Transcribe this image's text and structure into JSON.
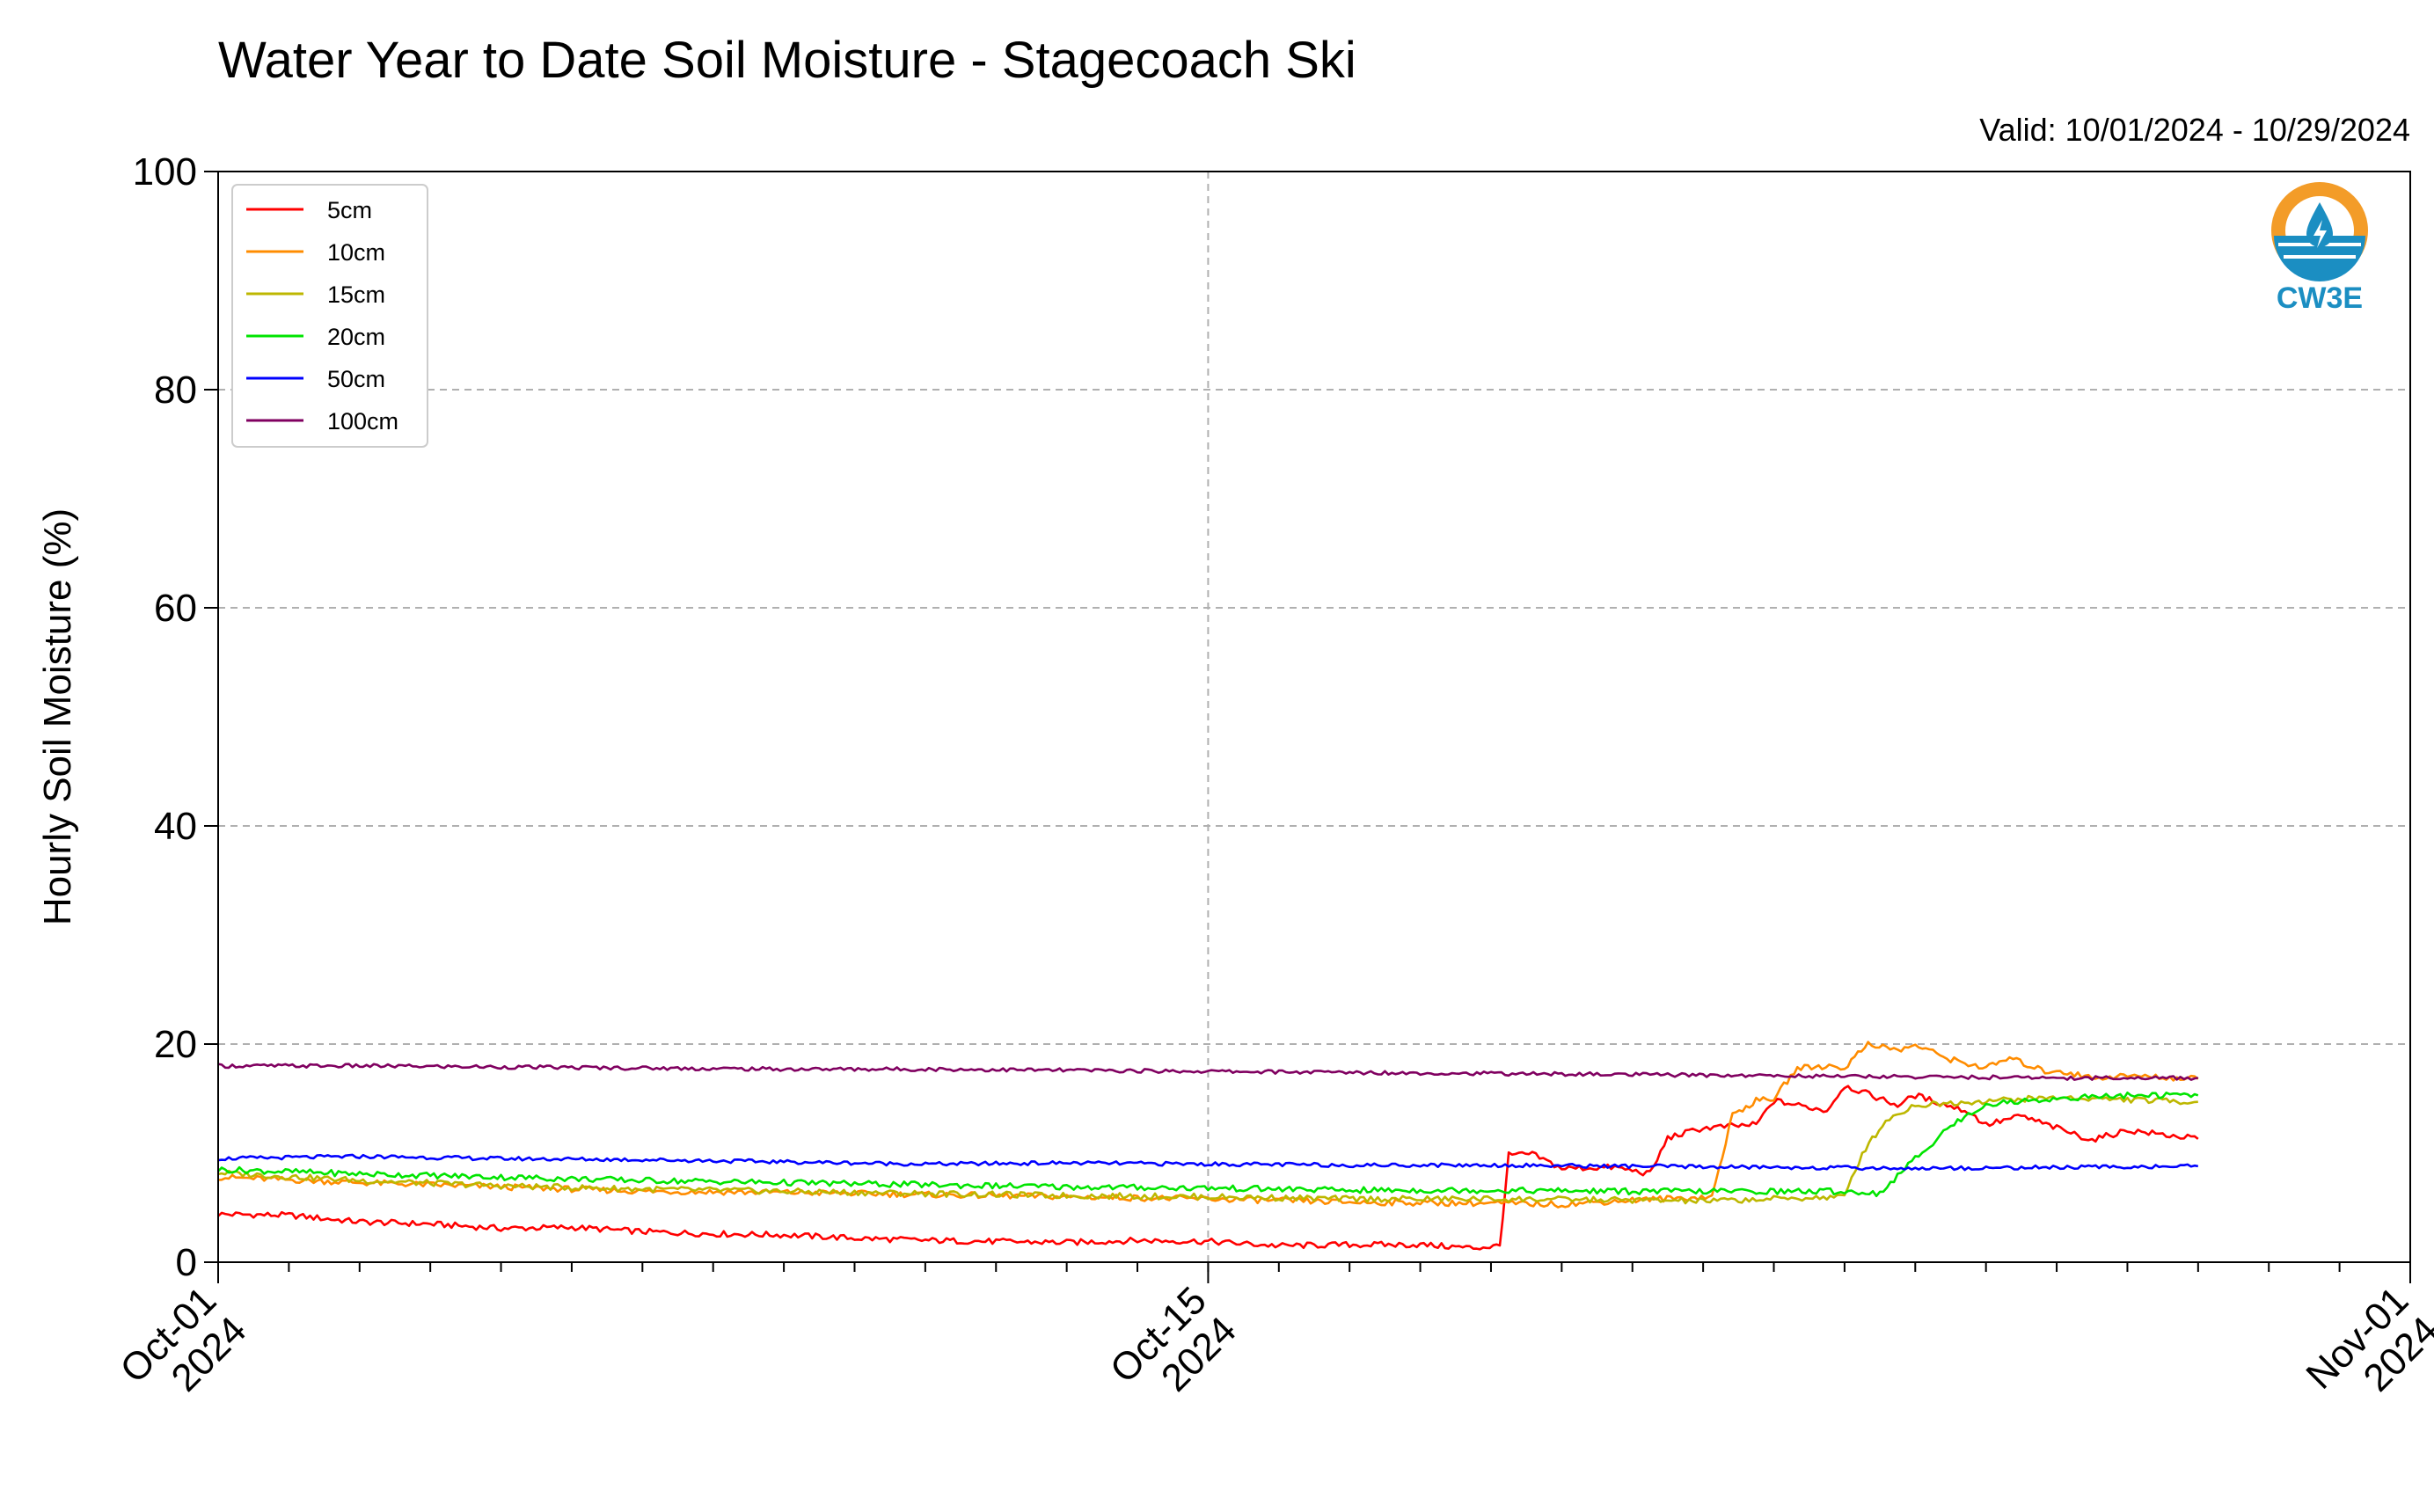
{
  "chart_data": {
    "type": "line",
    "title": "Water Year to Date Soil Moisture - Stagecoach Ski",
    "subtitle": "Valid: 10/01/2024 - 10/29/2024",
    "xlabel": "",
    "ylabel": "Hourly Soil Moisture (%)",
    "ylim": [
      0,
      100
    ],
    "xlim": [
      "2024-10-01",
      "2024-11-01"
    ],
    "yticks": [
      "0",
      "20",
      "40",
      "60",
      "80",
      "100"
    ],
    "xticks": [
      {
        "date": "2024-10-01",
        "label1": "Oct-01",
        "label2": "2024"
      },
      {
        "date": "2024-10-15",
        "label1": "Oct-15",
        "label2": "2024"
      },
      {
        "date": "2024-11-01",
        "label1": "Nov-01",
        "label2": "2024"
      }
    ],
    "grid": true,
    "legend_position": "top-left",
    "series": [
      {
        "name": "5cm",
        "color": "#ff0000",
        "points": [
          [
            "2024-10-01",
            4.4
          ],
          [
            "2024-10-02",
            4.3
          ],
          [
            "2024-10-03",
            3.7
          ],
          [
            "2024-10-04",
            3.5
          ],
          [
            "2024-10-05",
            3.1
          ],
          [
            "2024-10-06",
            3.2
          ],
          [
            "2024-10-07",
            2.8
          ],
          [
            "2024-10-08",
            2.6
          ],
          [
            "2024-10-09",
            2.5
          ],
          [
            "2024-10-10",
            2.2
          ],
          [
            "2024-10-11",
            2.0
          ],
          [
            "2024-10-12",
            1.9
          ],
          [
            "2024-10-13",
            1.8
          ],
          [
            "2024-10-14",
            2.0
          ],
          [
            "2024-10-15",
            1.9
          ],
          [
            "2024-10-16",
            1.5
          ],
          [
            "2024-10-17",
            1.6
          ],
          [
            "2024-10-18",
            1.6
          ],
          [
            "2024-10-18T18",
            1.3
          ],
          [
            "2024-10-19T03",
            1.5
          ],
          [
            "2024-10-19T06",
            9.8
          ],
          [
            "2024-10-19T14",
            9.9
          ],
          [
            "2024-10-20",
            8.6
          ],
          [
            "2024-10-20T18",
            8.7
          ],
          [
            "2024-10-21T06",
            8.1
          ],
          [
            "2024-10-21T12",
            11.4
          ],
          [
            "2024-10-22",
            12.3
          ],
          [
            "2024-10-22T18",
            12.6
          ],
          [
            "2024-10-23",
            14.8
          ],
          [
            "2024-10-23T18",
            13.9
          ],
          [
            "2024-10-24",
            16.2
          ],
          [
            "2024-10-24T18",
            14.4
          ],
          [
            "2024-10-25",
            15.3
          ],
          [
            "2024-10-25T18",
            13.8
          ],
          [
            "2024-10-26",
            12.6
          ],
          [
            "2024-10-26T12",
            13.4
          ],
          [
            "2024-10-27",
            12.3
          ],
          [
            "2024-10-27T12",
            11.2
          ],
          [
            "2024-10-28",
            12.1
          ],
          [
            "2024-10-29",
            11.3
          ]
        ]
      },
      {
        "name": "10cm",
        "color": "#ff8c00",
        "points": [
          [
            "2024-10-01",
            7.8
          ],
          [
            "2024-10-03",
            7.3
          ],
          [
            "2024-10-05",
            6.9
          ],
          [
            "2024-10-07",
            6.5
          ],
          [
            "2024-10-09",
            6.4
          ],
          [
            "2024-10-11",
            6.2
          ],
          [
            "2024-10-13",
            6.0
          ],
          [
            "2024-10-15",
            5.8
          ],
          [
            "2024-10-17",
            5.5
          ],
          [
            "2024-10-19",
            5.4
          ],
          [
            "2024-10-20",
            5.3
          ],
          [
            "2024-10-21",
            5.7
          ],
          [
            "2024-10-22T03",
            6.0
          ],
          [
            "2024-10-22T10",
            13.5
          ],
          [
            "2024-10-22T18",
            14.8
          ],
          [
            "2024-10-23",
            15.0
          ],
          [
            "2024-10-23T08",
            17.8
          ],
          [
            "2024-10-23T20",
            18.0
          ],
          [
            "2024-10-24",
            17.8
          ],
          [
            "2024-10-24T08",
            20.1
          ],
          [
            "2024-10-24T18",
            19.4
          ],
          [
            "2024-10-25",
            19.9
          ],
          [
            "2024-10-25T12",
            18.6
          ],
          [
            "2024-10-26",
            17.8
          ],
          [
            "2024-10-26T08",
            18.7
          ],
          [
            "2024-10-26T20",
            17.5
          ],
          [
            "2024-10-27",
            17.6
          ],
          [
            "2024-10-27T12",
            16.9
          ],
          [
            "2024-10-28",
            17.1
          ],
          [
            "2024-10-29",
            16.8
          ]
        ]
      },
      {
        "name": "15cm",
        "color": "#bdb700",
        "points": [
          [
            "2024-10-01",
            8.2
          ],
          [
            "2024-10-03",
            7.5
          ],
          [
            "2024-10-05",
            7.0
          ],
          [
            "2024-10-07",
            6.7
          ],
          [
            "2024-10-09",
            6.5
          ],
          [
            "2024-10-11",
            6.3
          ],
          [
            "2024-10-13",
            6.1
          ],
          [
            "2024-10-15",
            6.0
          ],
          [
            "2024-10-17",
            5.8
          ],
          [
            "2024-10-19",
            5.8
          ],
          [
            "2024-10-21",
            5.7
          ],
          [
            "2024-10-22",
            5.6
          ],
          [
            "2024-10-23",
            5.8
          ],
          [
            "2024-10-24",
            6.0
          ],
          [
            "2024-10-24T06",
            10.0
          ],
          [
            "2024-10-24T14",
            13.0
          ],
          [
            "2024-10-25",
            14.4
          ],
          [
            "2024-10-26",
            14.8
          ],
          [
            "2024-10-27",
            15.1
          ],
          [
            "2024-10-28",
            14.9
          ],
          [
            "2024-10-29",
            14.7
          ]
        ]
      },
      {
        "name": "20cm",
        "color": "#00e400",
        "points": [
          [
            "2024-10-01",
            8.5
          ],
          [
            "2024-10-03",
            8.1
          ],
          [
            "2024-10-05",
            7.8
          ],
          [
            "2024-10-07",
            7.5
          ],
          [
            "2024-10-09",
            7.3
          ],
          [
            "2024-10-11",
            7.1
          ],
          [
            "2024-10-13",
            6.9
          ],
          [
            "2024-10-15",
            6.8
          ],
          [
            "2024-10-17",
            6.6
          ],
          [
            "2024-10-19",
            6.6
          ],
          [
            "2024-10-21",
            6.5
          ],
          [
            "2024-10-23",
            6.5
          ],
          [
            "2024-10-24",
            6.5
          ],
          [
            "2024-10-24T12",
            6.3
          ],
          [
            "2024-10-25",
            9.5
          ],
          [
            "2024-10-25T12",
            12.5
          ],
          [
            "2024-10-26",
            14.5
          ],
          [
            "2024-10-27",
            15.0
          ],
          [
            "2024-10-28",
            15.3
          ],
          [
            "2024-10-29",
            15.3
          ]
        ]
      },
      {
        "name": "50cm",
        "color": "#0000ff",
        "points": [
          [
            "2024-10-01",
            9.5
          ],
          [
            "2024-10-03",
            9.7
          ],
          [
            "2024-10-05",
            9.5
          ],
          [
            "2024-10-07",
            9.4
          ],
          [
            "2024-10-09",
            9.2
          ],
          [
            "2024-10-11",
            9.0
          ],
          [
            "2024-10-13",
            9.1
          ],
          [
            "2024-10-15",
            9.0
          ],
          [
            "2024-10-17",
            8.9
          ],
          [
            "2024-10-19",
            8.9
          ],
          [
            "2024-10-21",
            8.8
          ],
          [
            "2024-10-23",
            8.7
          ],
          [
            "2024-10-25",
            8.6
          ],
          [
            "2024-10-27",
            8.7
          ],
          [
            "2024-10-29",
            8.8
          ]
        ]
      },
      {
        "name": "100cm",
        "color": "#800060",
        "points": [
          [
            "2024-10-01",
            18.0
          ],
          [
            "2024-10-03",
            18.0
          ],
          [
            "2024-10-05",
            17.9
          ],
          [
            "2024-10-07",
            17.8
          ],
          [
            "2024-10-09",
            17.7
          ],
          [
            "2024-10-11",
            17.7
          ],
          [
            "2024-10-13",
            17.6
          ],
          [
            "2024-10-15",
            17.5
          ],
          [
            "2024-10-17",
            17.4
          ],
          [
            "2024-10-19",
            17.3
          ],
          [
            "2024-10-21",
            17.2
          ],
          [
            "2024-10-23",
            17.1
          ],
          [
            "2024-10-25",
            17.0
          ],
          [
            "2024-10-27",
            16.9
          ],
          [
            "2024-10-29",
            16.9
          ]
        ]
      }
    ]
  },
  "logo": {
    "text": "CW3E",
    "orange": "#f39c28",
    "blue": "#1b8ec2"
  }
}
